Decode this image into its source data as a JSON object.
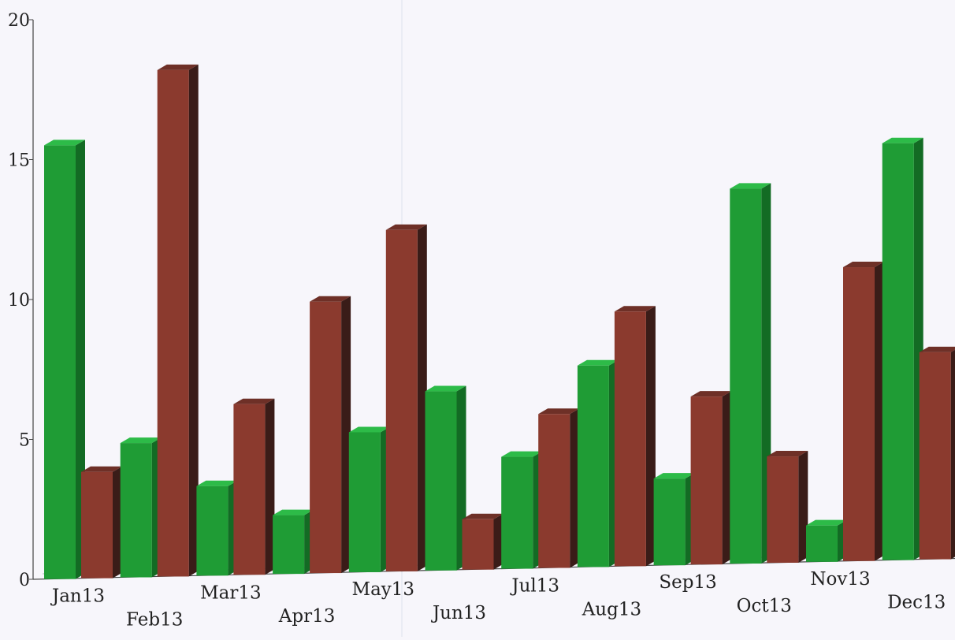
{
  "chart_data": {
    "type": "bar",
    "title": "",
    "xlabel": "",
    "ylabel": "",
    "ylim": [
      0,
      20
    ],
    "yticks": [
      "0",
      "5",
      "10",
      "15",
      "20"
    ],
    "categories": [
      "Jan13",
      "Feb13",
      "Mar13",
      "Apr13",
      "May13",
      "Jun13",
      "Jul13",
      "Aug13",
      "Sep13",
      "Oct13",
      "Nov13",
      "Dec13"
    ],
    "series": [
      {
        "values": [
          15.5,
          4.8,
          3.2,
          2.1,
          5.0,
          6.4,
          4.0,
          7.2,
          3.1,
          13.4,
          1.3,
          14.9
        ]
      },
      {
        "values": [
          3.8,
          18.1,
          6.1,
          9.7,
          12.2,
          1.8,
          5.5,
          9.1,
          6.0,
          3.8,
          10.5,
          7.4
        ]
      }
    ],
    "legend": "none",
    "grid": false,
    "colors": {
      "series_front": [
        "#1f9c35",
        "#8b3a2e"
      ],
      "series_side": [
        "#136b24",
        "#3a1c18"
      ],
      "series_top": [
        "#2dbb48",
        "#6e3027"
      ],
      "axis": "#444444",
      "background": "#f7f6fb"
    }
  }
}
